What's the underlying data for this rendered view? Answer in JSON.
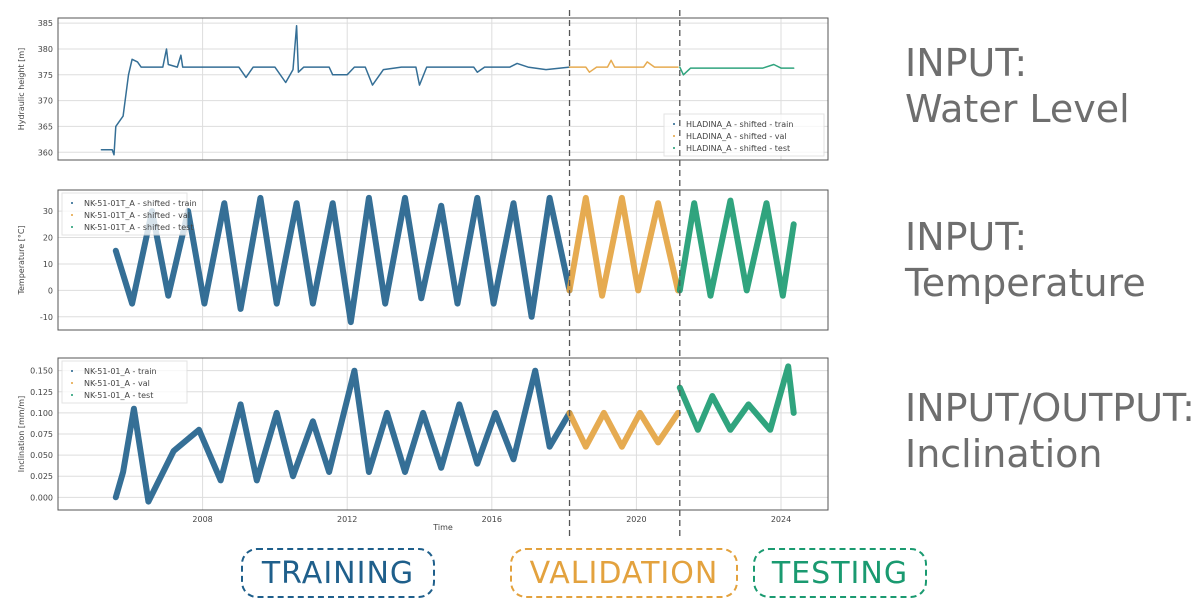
{
  "colors": {
    "train": "#1f5f8b",
    "val": "#e3a23e",
    "test": "#1a9a70",
    "text": "#6e6e6e"
  },
  "chart_data": {
    "type": "line",
    "xlabel": "Time",
    "xlim": [
      2004.0,
      2025.3
    ],
    "xticks": [
      2008,
      2012,
      2016,
      2020,
      2024
    ],
    "split_lines": [
      2018.15,
      2021.2
    ],
    "grid": true,
    "panels": [
      {
        "ylabel": "Hydraulic height [m]",
        "ylim": [
          358.5,
          386
        ],
        "yticks": [
          360,
          365,
          370,
          375,
          380,
          385
        ],
        "ytick_labels": [
          "360",
          "365",
          "370",
          "375",
          "380",
          "385"
        ],
        "legend_placement": "lower-right",
        "band": 1.5,
        "series": [
          {
            "name": "HLADINA_A - shifted - train",
            "split": "train",
            "points": [
              [
                2005.2,
                360.5
              ],
              [
                2005.5,
                360.5
              ],
              [
                2005.55,
                359.5
              ],
              [
                2005.6,
                365
              ],
              [
                2005.8,
                367
              ],
              [
                2005.95,
                375
              ],
              [
                2006.05,
                378
              ],
              [
                2006.2,
                377.5
              ],
              [
                2006.3,
                376.5
              ],
              [
                2006.9,
                376.5
              ],
              [
                2007.0,
                380
              ],
              [
                2007.05,
                377
              ],
              [
                2007.3,
                376.5
              ],
              [
                2007.4,
                378.8
              ],
              [
                2007.45,
                376.5
              ],
              [
                2008.0,
                376.5
              ],
              [
                2009.0,
                376.5
              ],
              [
                2009.2,
                374.5
              ],
              [
                2009.4,
                376.5
              ],
              [
                2010.0,
                376.5
              ],
              [
                2010.3,
                373.5
              ],
              [
                2010.5,
                376
              ],
              [
                2010.6,
                384.5
              ],
              [
                2010.65,
                375.5
              ],
              [
                2010.8,
                376.5
              ],
              [
                2011.5,
                376.5
              ],
              [
                2011.6,
                375
              ],
              [
                2012.0,
                375
              ],
              [
                2012.2,
                376.5
              ],
              [
                2012.5,
                376.5
              ],
              [
                2012.7,
                373
              ],
              [
                2013.0,
                376
              ],
              [
                2013.5,
                376.5
              ],
              [
                2013.9,
                376.5
              ],
              [
                2014.0,
                373
              ],
              [
                2014.2,
                376.5
              ],
              [
                2015.5,
                376.5
              ],
              [
                2015.6,
                375.5
              ],
              [
                2015.8,
                376.5
              ],
              [
                2016.5,
                376.5
              ],
              [
                2016.7,
                377.2
              ],
              [
                2017.0,
                376.5
              ],
              [
                2017.5,
                376
              ],
              [
                2018.15,
                376.5
              ]
            ]
          },
          {
            "name": "HLADINA_A - shifted - val",
            "split": "val",
            "points": [
              [
                2018.15,
                376.5
              ],
              [
                2018.6,
                376.5
              ],
              [
                2018.7,
                375.5
              ],
              [
                2018.9,
                376.5
              ],
              [
                2019.2,
                376.5
              ],
              [
                2019.3,
                377.8
              ],
              [
                2019.4,
                376.5
              ],
              [
                2020.2,
                376.5
              ],
              [
                2020.3,
                377.5
              ],
              [
                2020.5,
                376.5
              ],
              [
                2021.15,
                376.5
              ]
            ]
          },
          {
            "name": "HLADINA_A - shifted - test",
            "split": "test",
            "points": [
              [
                2021.2,
                376.5
              ],
              [
                2021.3,
                375
              ],
              [
                2021.5,
                376.3
              ],
              [
                2023.5,
                376.3
              ],
              [
                2023.8,
                377
              ],
              [
                2024.0,
                376.3
              ],
              [
                2024.35,
                376.3
              ]
            ]
          }
        ]
      },
      {
        "ylabel": "Temperature [°C]",
        "ylim": [
          -15,
          38
        ],
        "yticks": [
          -10,
          0,
          10,
          20,
          30
        ],
        "ytick_labels": [
          "-10",
          "0",
          "10",
          "20",
          "30"
        ],
        "legend_placement": "upper-left",
        "band": 6,
        "series": [
          {
            "name": "NK-51-01T_A - shifted - train",
            "split": "train",
            "points": [
              [
                2005.6,
                15
              ],
              [
                2006.05,
                -5
              ],
              [
                2006.6,
                30
              ],
              [
                2007.05,
                -2
              ],
              [
                2007.6,
                30
              ],
              [
                2008.05,
                -5
              ],
              [
                2008.6,
                33
              ],
              [
                2009.05,
                -7
              ],
              [
                2009.6,
                35
              ],
              [
                2010.05,
                -5
              ],
              [
                2010.6,
                33
              ],
              [
                2011.05,
                -5
              ],
              [
                2011.6,
                33
              ],
              [
                2012.1,
                -12
              ],
              [
                2012.6,
                35
              ],
              [
                2013.05,
                -5
              ],
              [
                2013.6,
                35
              ],
              [
                2014.05,
                -3
              ],
              [
                2014.6,
                32
              ],
              [
                2015.05,
                -5
              ],
              [
                2015.6,
                35
              ],
              [
                2016.05,
                -5
              ],
              [
                2016.6,
                33
              ],
              [
                2017.1,
                -10
              ],
              [
                2017.6,
                35
              ],
              [
                2018.15,
                0
              ]
            ]
          },
          {
            "name": "NK-51-01T_A - shifted - val",
            "split": "val",
            "points": [
              [
                2018.15,
                0
              ],
              [
                2018.6,
                35
              ],
              [
                2019.05,
                -2
              ],
              [
                2019.6,
                35
              ],
              [
                2020.05,
                0
              ],
              [
                2020.6,
                33
              ],
              [
                2021.15,
                0
              ]
            ]
          },
          {
            "name": "NK-51-01T_A - shifted - test",
            "split": "test",
            "points": [
              [
                2021.2,
                0
              ],
              [
                2021.6,
                33
              ],
              [
                2022.05,
                -2
              ],
              [
                2022.6,
                34
              ],
              [
                2023.05,
                0
              ],
              [
                2023.6,
                33
              ],
              [
                2024.05,
                -2
              ],
              [
                2024.35,
                25
              ]
            ]
          }
        ]
      },
      {
        "ylabel": "Inclination [mm/m]",
        "ylim": [
          -0.015,
          0.165
        ],
        "yticks": [
          0,
          0.025,
          0.05,
          0.075,
          0.1,
          0.125,
          0.15
        ],
        "ytick_labels": [
          "0.000",
          "0.025",
          "0.050",
          "0.075",
          "0.100",
          "0.125",
          "0.150"
        ],
        "legend_placement": "upper-left",
        "band": 6,
        "series": [
          {
            "name": "NK-51-01_A - train",
            "split": "train",
            "points": [
              [
                2005.6,
                0.0
              ],
              [
                2005.8,
                0.03
              ],
              [
                2006.1,
                0.105
              ],
              [
                2006.5,
                -0.005
              ],
              [
                2007.2,
                0.055
              ],
              [
                2007.9,
                0.08
              ],
              [
                2008.5,
                0.02
              ],
              [
                2009.05,
                0.11
              ],
              [
                2009.5,
                0.02
              ],
              [
                2010.05,
                0.1
              ],
              [
                2010.5,
                0.025
              ],
              [
                2011.05,
                0.09
              ],
              [
                2011.5,
                0.03
              ],
              [
                2012.2,
                0.15
              ],
              [
                2012.6,
                0.03
              ],
              [
                2013.1,
                0.1
              ],
              [
                2013.6,
                0.03
              ],
              [
                2014.1,
                0.1
              ],
              [
                2014.6,
                0.035
              ],
              [
                2015.1,
                0.11
              ],
              [
                2015.6,
                0.04
              ],
              [
                2016.1,
                0.1
              ],
              [
                2016.6,
                0.045
              ],
              [
                2017.2,
                0.15
              ],
              [
                2017.6,
                0.06
              ],
              [
                2018.15,
                0.1
              ]
            ]
          },
          {
            "name": "NK-51-01_A - val",
            "split": "val",
            "points": [
              [
                2018.15,
                0.1
              ],
              [
                2018.6,
                0.06
              ],
              [
                2019.1,
                0.1
              ],
              [
                2019.6,
                0.06
              ],
              [
                2020.1,
                0.1
              ],
              [
                2020.6,
                0.065
              ],
              [
                2021.15,
                0.1
              ]
            ]
          },
          {
            "name": "NK-51-01_A - test",
            "split": "test",
            "points": [
              [
                2021.2,
                0.13
              ],
              [
                2021.7,
                0.08
              ],
              [
                2022.1,
                0.12
              ],
              [
                2022.6,
                0.08
              ],
              [
                2023.1,
                0.11
              ],
              [
                2023.7,
                0.08
              ],
              [
                2024.2,
                0.155
              ],
              [
                2024.35,
                0.1
              ]
            ]
          }
        ]
      }
    ]
  },
  "side_labels": [
    {
      "line1": "INPUT:",
      "line2": "Water Level"
    },
    {
      "line1": "INPUT:",
      "line2": "Temperature"
    },
    {
      "line1": "INPUT/OUTPUT:",
      "line2": "Inclination"
    }
  ],
  "split_tags": {
    "train": "TRAINING",
    "val": "VALIDATION",
    "test": "TESTING"
  }
}
